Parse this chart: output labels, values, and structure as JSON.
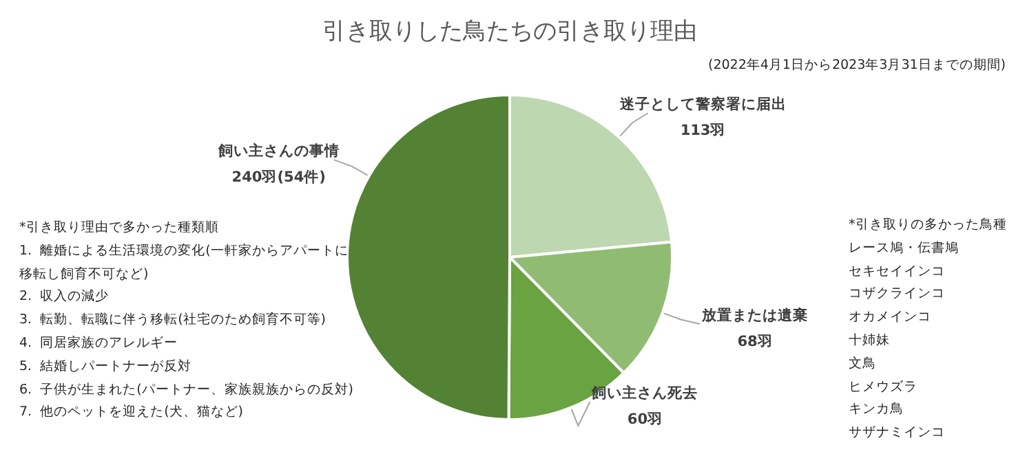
{
  "chart_data": {
    "type": "pie",
    "title": "引き取りした鳥たちの引き取り理由",
    "subtitle": "(2022年4月1日から2023年3月31日までの期間)",
    "categories": [
      "迷子として警察署に届出",
      "放置または遺棄",
      "飼い主さん死去",
      "飼い主さんの事情"
    ],
    "values": [
      113,
      68,
      60,
      240
    ],
    "value_labels": [
      "113羽",
      "68羽",
      "60羽",
      "240羽(54件)"
    ],
    "colors": [
      "#bdd7b0",
      "#8fbc72",
      "#6aa342",
      "#548235"
    ],
    "legend": false,
    "annotations": [
      "*引き取り理由で多かった種類順",
      "1.  離婚による生活環境の変化(一軒家からアパートに移転し飼育不可など)",
      "2.  収入の減少",
      "3.  転勤、転職に伴う移転(社宅のため飼育不可等)",
      "4.  同居家族のアレルギー",
      "5.  結婚しパートナーが反対",
      "6.  子供が生まれた(パートナー、家族親族からの反対)",
      "7.  他のペットを迎えた(犬、猫など)",
      "*引き取りの多かった鳥種",
      "レース鳩・伝書鳩",
      "セキセイインコ",
      "コザクラインコ",
      "オカメインコ",
      "十姉妹",
      "文鳥",
      "ヒメウズラ",
      "キンカ鳥",
      "サザナミインコ"
    ]
  }
}
